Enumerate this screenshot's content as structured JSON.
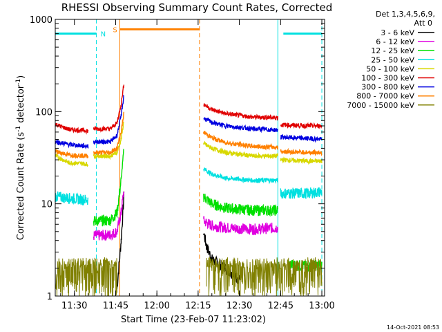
{
  "chart_data": {
    "type": "line",
    "title": "RHESSI Observing Summary Count Rates, Corrected",
    "xlabel": "Start Time (23-Feb-07 11:23:02)",
    "ylabel": "Corrected Count Rate (s",
    "ylabel_sup": "-1",
    "ylabel_tail": " detector",
    "ylabel_tail_sup": "-1",
    "ylabel_close": ")",
    "y_scale": "log",
    "ylim": [
      1,
      1000
    ],
    "xlim": [
      "11:23:02",
      "13:01:00"
    ],
    "x_ticks": [
      "11:30",
      "11:45",
      "12:00",
      "12:15",
      "12:30",
      "12:45",
      "13:00"
    ],
    "y_ticks": [
      "1",
      "10",
      "100",
      "1000"
    ],
    "legend_header": [
      "Det 1,3,4,5,6,9,",
      "Att 0"
    ],
    "legend_position": "right",
    "timestamp": "14-Oct-2021 08:53",
    "flag_labels": [
      "N",
      "S"
    ],
    "series": [
      {
        "name": "3 - 6 keV",
        "color": "#000000",
        "segments": [
          {
            "x": [
              "11:45:30",
              "11:47:00",
              "11:48:00"
            ],
            "y": [
              1.2,
              4.0,
              12
            ]
          },
          {
            "x": [
              "12:17:00",
              "12:18:00",
              "12:20:00",
              "12:25:00",
              "12:30:00"
            ],
            "y": [
              5.0,
              3.5,
              2.5,
              2.0,
              1.5
            ]
          }
        ]
      },
      {
        "name": "6 - 12 keV",
        "color": "#e000e0",
        "segments": [
          {
            "x": [
              "11:37:00",
              "11:43:00",
              "11:45:30",
              "11:47:00",
              "11:48:00"
            ],
            "y": [
              4.5,
              4.6,
              5.0,
              8.0,
              14
            ]
          },
          {
            "x": [
              "12:17:00",
              "12:20:00",
              "12:25:00",
              "12:35:00",
              "12:44:00"
            ],
            "y": [
              6.5,
              5.8,
              5.5,
              5.3,
              5.5
            ]
          }
        ]
      },
      {
        "name": "12 - 25 keV",
        "color": "#00e000",
        "segments": [
          {
            "x": [
              "11:37:00",
              "11:43:00",
              "11:45:30",
              "11:47:00",
              "11:48:00"
            ],
            "y": [
              6.5,
              6.6,
              8.0,
              18,
              40
            ]
          },
          {
            "x": [
              "12:17:00",
              "12:20:00",
              "12:25:00",
              "12:35:00",
              "12:44:00"
            ],
            "y": [
              12,
              10,
              9.0,
              8.5,
              8.5
            ]
          },
          {
            "x": [
              "12:48:00",
              "12:55:00",
              "13:00:00"
            ],
            "y": [
              2.2,
              2.1,
              2.2
            ]
          }
        ]
      },
      {
        "name": "25 - 50 keV",
        "color": "#00e0e0",
        "segments": [
          {
            "x": [
              "11:23:02",
              "11:28:00",
              "11:35:00"
            ],
            "y": [
              12,
              11.5,
              11
            ]
          },
          {
            "x": [
              "12:17:00",
              "12:20:00",
              "12:25:00",
              "12:35:00",
              "12:44:00"
            ],
            "y": [
              24,
              21,
              19,
              18,
              18
            ]
          },
          {
            "x": [
              "12:45:00",
              "12:55:00",
              "13:00:00"
            ],
            "y": [
              13,
              13,
              13.5
            ]
          }
        ]
      },
      {
        "name": "50 - 100 keV",
        "color": "#d8d800",
        "segments": [
          {
            "x": [
              "11:23:02",
              "11:28:00",
              "11:35:00"
            ],
            "y": [
              33,
              28,
              27
            ]
          },
          {
            "x": [
              "11:37:00",
              "11:43:00",
              "11:45:30",
              "11:47:00",
              "11:48:00"
            ],
            "y": [
              33,
              33,
              36,
              50,
              80
            ]
          },
          {
            "x": [
              "12:17:00",
              "12:20:00",
              "12:25:00",
              "12:35:00",
              "12:44:00"
            ],
            "y": [
              45,
              40,
              36,
              33,
              33
            ]
          },
          {
            "x": [
              "12:45:00",
              "12:55:00",
              "13:00:00"
            ],
            "y": [
              30,
              29,
              29
            ]
          }
        ]
      },
      {
        "name": "100 - 300 keV",
        "color": "#e00000",
        "segments": [
          {
            "x": [
              "11:23:02",
              "11:28:00",
              "11:35:00"
            ],
            "y": [
              73,
              64,
              62
            ]
          },
          {
            "x": [
              "11:37:00",
              "11:43:00",
              "11:45:30",
              "11:47:00",
              "11:48:00"
            ],
            "y": [
              65,
              65,
              75,
              120,
              200
            ]
          },
          {
            "x": [
              "12:17:00",
              "12:20:00",
              "12:25:00",
              "12:35:00",
              "12:44:00"
            ],
            "y": [
              120,
              105,
              95,
              87,
              86
            ]
          },
          {
            "x": [
              "12:45:00",
              "12:55:00",
              "13:00:00"
            ],
            "y": [
              72,
              70,
              70
            ]
          }
        ]
      },
      {
        "name": "300 - 800 keV",
        "color": "#0000e0",
        "segments": [
          {
            "x": [
              "11:23:02",
              "11:28:00",
              "11:35:00"
            ],
            "y": [
              47,
              44,
              42
            ]
          },
          {
            "x": [
              "11:37:00",
              "11:43:00",
              "11:45:30",
              "11:47:00",
              "11:48:00"
            ],
            "y": [
              47,
              47,
              55,
              90,
              150
            ]
          },
          {
            "x": [
              "12:17:00",
              "12:20:00",
              "12:25:00",
              "12:35:00",
              "12:44:00"
            ],
            "y": [
              85,
              76,
              70,
              65,
              63
            ]
          },
          {
            "x": [
              "12:45:00",
              "12:55:00",
              "13:00:00"
            ],
            "y": [
              53,
              51,
              50
            ]
          }
        ]
      },
      {
        "name": "800 - 7000 keV",
        "color": "#ff8000",
        "segments": [
          {
            "x": [
              "11:23:02",
              "11:28:00",
              "11:35:00"
            ],
            "y": [
              37,
              34,
              33
            ]
          },
          {
            "x": [
              "11:37:00",
              "11:43:00",
              "11:45:30",
              "11:47:00",
              "11:48:00"
            ],
            "y": [
              36,
              36,
              40,
              60,
              95
            ]
          },
          {
            "x": [
              "12:17:00",
              "12:20:00",
              "12:25:00",
              "12:35:00",
              "12:44:00"
            ],
            "y": [
              60,
              52,
              46,
              42,
              41
            ]
          },
          {
            "x": [
              "12:45:00",
              "12:55:00",
              "13:00:00"
            ],
            "y": [
              37,
              36,
              36
            ]
          }
        ]
      },
      {
        "name": "7000 - 15000 keV",
        "color": "#808000",
        "segments": [
          {
            "x": [
              "11:23:02",
              "11:30:00",
              "11:40:00",
              "11:45:30"
            ],
            "y": [
              1.6,
              1.5,
              1.6,
              1.5
            ]
          },
          {
            "x": [
              "12:18:00",
              "12:30:00",
              "12:45:00",
              "13:00:00"
            ],
            "y": [
              1.6,
              1.6,
              1.5,
              1.6
            ]
          }
        ]
      }
    ],
    "flags": [
      {
        "name": "night",
        "label": "N",
        "color": "#00e0e0",
        "bars": [
          {
            "x0": "11:23:02",
            "x1": "11:38:00"
          },
          {
            "x0": "12:46:00",
            "x1": "13:00:00"
          }
        ],
        "boundaries_solid": [
          "11:23:02",
          "12:44:00"
        ],
        "boundaries_dashed": [
          "11:38:00",
          "13:00:00"
        ],
        "y": 700
      },
      {
        "name": "saa",
        "label": "S",
        "color": "#ff8000",
        "bars": [
          {
            "x0": "11:46:30",
            "x1": "12:15:30"
          }
        ],
        "boundaries_solid": [
          "11:46:30"
        ],
        "boundaries_dashed": [
          "12:15:30"
        ],
        "y": 780
      }
    ]
  },
  "colors": {
    "axes": "#000000",
    "background": "#ffffff"
  }
}
